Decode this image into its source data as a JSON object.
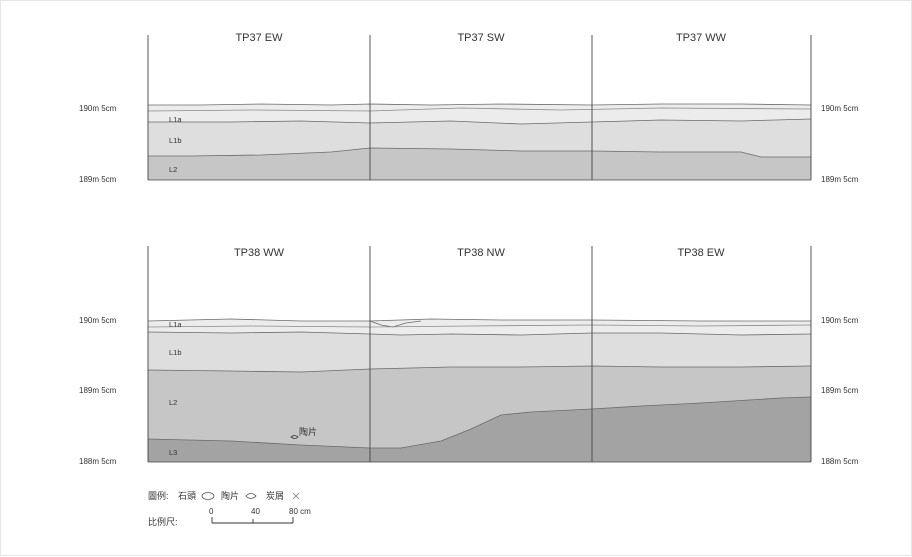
{
  "profiles": [
    {
      "sections": [
        "TP37 EW",
        "TP37 SW",
        "TP37 WW"
      ],
      "elevations": [
        "190m 5cm",
        "189m 5cm"
      ],
      "layers": [
        "L1a",
        "L1b",
        "L2"
      ]
    },
    {
      "sections": [
        "TP38 WW",
        "TP38 NW",
        "TP38 EW"
      ],
      "elevations": [
        "190m 5cm",
        "189m 5cm",
        "188m 5cm"
      ],
      "layers": [
        "L1a",
        "L1b",
        "L2",
        "L3"
      ],
      "annotations": [
        "陶片"
      ]
    }
  ],
  "legend": {
    "title": "圖例:",
    "items": [
      {
        "label": "石頭",
        "icon": "stone-icon"
      },
      {
        "label": "陶片",
        "icon": "sherd-icon"
      },
      {
        "label": "炭屑",
        "icon": "charcoal-icon"
      }
    ]
  },
  "scale": {
    "label": "比例尺:",
    "ticks": [
      "0",
      "40",
      "80 cm"
    ]
  },
  "colors": {
    "L1a": "#ececec",
    "L1b": "#dedede",
    "L2": "#c6c6c6",
    "L3": "#a3a3a3",
    "line": "#555555"
  }
}
